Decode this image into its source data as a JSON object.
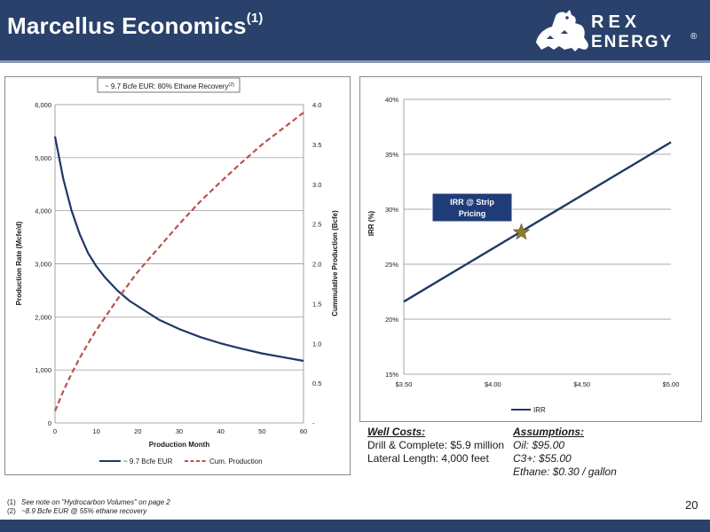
{
  "header": {
    "title": "Marcellus Economics",
    "title_sup": "(1)",
    "logo_line1": "REX",
    "logo_line2": "ENERGY",
    "logo_mark": "®"
  },
  "colors": {
    "header_bg": "#29416b",
    "series_navy": "#1f3864",
    "series_red": "#c0504d",
    "irr_box": "#1f3c78",
    "star": "#8b7d2e"
  },
  "left_chart_box_label": "~ 9.7 Bcfe EUR: 80% Ethane Recovery",
  "left_chart_box_sup": "(2)",
  "chart_data": [
    {
      "type": "line",
      "xlabel": "Production Month",
      "ylabel": "Production Rate (Mcfe/d)",
      "y2label": "Cummulative Production (Bcfe)",
      "xlim": [
        0,
        60
      ],
      "ylim": [
        0,
        6000
      ],
      "y2lim": [
        0,
        4.0
      ],
      "x_ticks": [
        "0",
        "10",
        "20",
        "30",
        "40",
        "50",
        "60"
      ],
      "y_ticks": [
        "0",
        "1,000",
        "2,000",
        "3,000",
        "4,000",
        "5,000",
        "6,000"
      ],
      "y2_ticks": [
        "-",
        "0.5",
        "1.0",
        "1.5",
        "2.0",
        "2.5",
        "3.0",
        "3.5",
        "4.0"
      ],
      "grid": true,
      "legend_position": "bottom",
      "series": [
        {
          "name": "~ 9.7 Bcfe EUR",
          "axis": "left",
          "style": "solid",
          "x": [
            0,
            2,
            4,
            6,
            8,
            10,
            12,
            15,
            18,
            20,
            25,
            30,
            35,
            40,
            45,
            50,
            55,
            60
          ],
          "y": [
            5400,
            4600,
            4000,
            3550,
            3200,
            2950,
            2750,
            2500,
            2300,
            2200,
            1950,
            1770,
            1620,
            1500,
            1400,
            1310,
            1240,
            1170
          ]
        },
        {
          "name": "Cum. Production",
          "axis": "right",
          "style": "dashed",
          "x": [
            0,
            2,
            4,
            6,
            8,
            10,
            12,
            15,
            20,
            25,
            30,
            35,
            40,
            45,
            50,
            55,
            60
          ],
          "y": [
            0.15,
            0.4,
            0.62,
            0.82,
            1.0,
            1.17,
            1.32,
            1.55,
            1.9,
            2.2,
            2.5,
            2.78,
            3.03,
            3.27,
            3.5,
            3.7,
            3.9
          ]
        }
      ]
    },
    {
      "type": "line",
      "xlabel": "",
      "ylabel": "IRR (%)",
      "xlim": [
        3.5,
        5.0
      ],
      "ylim": [
        15,
        40
      ],
      "x_ticks": [
        "$3.50",
        "$4.00",
        "$4.50",
        "$5.00"
      ],
      "y_ticks": [
        "15%",
        "20%",
        "25%",
        "30%",
        "35%",
        "40%"
      ],
      "grid": true,
      "legend_position": "bottom",
      "series": [
        {
          "name": "IRR",
          "x": [
            3.5,
            5.0
          ],
          "y": [
            21.6,
            36.1
          ]
        }
      ],
      "annotation": {
        "label_line1": "IRR @ Strip",
        "label_line2": "Pricing",
        "x": 4.16,
        "y": 27.9
      }
    }
  ],
  "well_costs": {
    "heading": "Well Costs:",
    "line1": "Drill & Complete: $5.9 million",
    "line2": "Lateral Length: 4,000 feet"
  },
  "assumptions": {
    "heading": "Assumptions:",
    "line1": "Oil: $95.00",
    "line2": "C3+: $55.00",
    "line3": "Ethane: $0.30 / gallon"
  },
  "footnotes": [
    {
      "num": "(1)",
      "text": "See note on \"Hydrocarbon Volumes\" on page 2"
    },
    {
      "num": "(2)",
      "text": "~8.9 Bcfe EUR @ 55% ethane recovery"
    }
  ],
  "page_number": "20"
}
